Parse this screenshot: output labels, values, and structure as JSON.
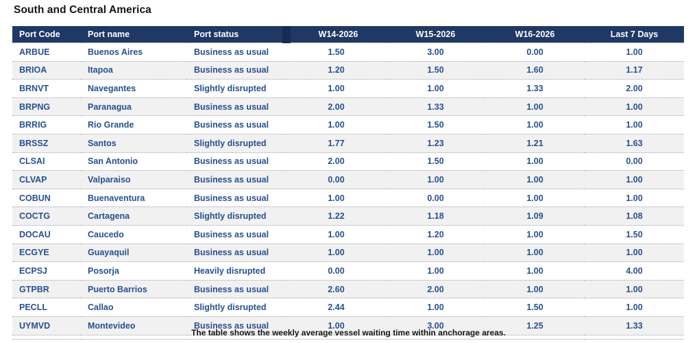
{
  "page": {
    "caption": "The table shows the weekly average vessel waiting time within anchorage areas."
  },
  "colors": {
    "header_bg": "#1F3864",
    "header_text": "#FFFFFF",
    "cell_text": "#27508F",
    "stripe_bg": "#F1F1F1",
    "row_border": "#9A9A9A",
    "title_text": "#141414"
  },
  "chart_data": {
    "type": "table",
    "title": "South and Central America",
    "caption": "The table shows the weekly average vessel waiting time within anchorage areas.",
    "columns": [
      "Port Code",
      "Port name",
      "Port status",
      "W14-2026",
      "W15-2026",
      "W16-2026",
      "Last 7 Days"
    ],
    "rows": [
      {
        "code": "ARBUE",
        "name": "Buenos Aires",
        "status": "Business as usual",
        "w14": "1.50",
        "w15": "3.00",
        "w16": "0.00",
        "last7": "1.00"
      },
      {
        "code": "BRIOA",
        "name": "Itapoa",
        "status": "Business as usual",
        "w14": "1.20",
        "w15": "1.50",
        "w16": "1.60",
        "last7": "1.17"
      },
      {
        "code": "BRNVT",
        "name": "Navegantes",
        "status": "Slightly disrupted",
        "w14": "1.00",
        "w15": "1.00",
        "w16": "1.33",
        "last7": "2.00"
      },
      {
        "code": "BRPNG",
        "name": "Paranagua",
        "status": "Business as usual",
        "w14": "2.00",
        "w15": "1.33",
        "w16": "1.00",
        "last7": "1.00"
      },
      {
        "code": "BRRIG",
        "name": "Rio Grande",
        "status": "Business as usual",
        "w14": "1.00",
        "w15": "1.50",
        "w16": "1.00",
        "last7": "1.00"
      },
      {
        "code": "BRSSZ",
        "name": "Santos",
        "status": "Slightly disrupted",
        "w14": "1.77",
        "w15": "1.23",
        "w16": "1.21",
        "last7": "1.63"
      },
      {
        "code": "CLSAI",
        "name": "San Antonio",
        "status": "Business as usual",
        "w14": "2.00",
        "w15": "1.50",
        "w16": "1.00",
        "last7": "0.00"
      },
      {
        "code": "CLVAP",
        "name": "Valparaiso",
        "status": "Business as usual",
        "w14": "0.00",
        "w15": "1.00",
        "w16": "1.00",
        "last7": "1.00"
      },
      {
        "code": "COBUN",
        "name": "Buenaventura",
        "status": "Business as usual",
        "w14": "1.00",
        "w15": "0.00",
        "w16": "1.00",
        "last7": "1.00"
      },
      {
        "code": "COCTG",
        "name": "Cartagena",
        "status": "Slightly disrupted",
        "w14": "1.22",
        "w15": "1.18",
        "w16": "1.09",
        "last7": "1.08"
      },
      {
        "code": "DOCAU",
        "name": "Caucedo",
        "status": "Business as usual",
        "w14": "1.00",
        "w15": "1.20",
        "w16": "1.00",
        "last7": "1.50"
      },
      {
        "code": "ECGYE",
        "name": "Guayaquil",
        "status": "Business as usual",
        "w14": "1.00",
        "w15": "1.00",
        "w16": "1.00",
        "last7": "1.00"
      },
      {
        "code": "ECPSJ",
        "name": "Posorja",
        "status": "Heavily disrupted",
        "w14": "0.00",
        "w15": "1.00",
        "w16": "1.00",
        "last7": "4.00"
      },
      {
        "code": "GTPBR",
        "name": "Puerto Barrios",
        "status": "Business as usual",
        "w14": "2.60",
        "w15": "2.00",
        "w16": "1.00",
        "last7": "1.00"
      },
      {
        "code": "PECLL",
        "name": "Callao",
        "status": "Slightly disrupted",
        "w14": "2.44",
        "w15": "1.00",
        "w16": "1.50",
        "last7": "1.00"
      },
      {
        "code": "UYMVD",
        "name": "Montevideo",
        "status": "Business as usual",
        "w14": "1.00",
        "w15": "3.00",
        "w16": "1.25",
        "last7": "1.33"
      }
    ]
  }
}
